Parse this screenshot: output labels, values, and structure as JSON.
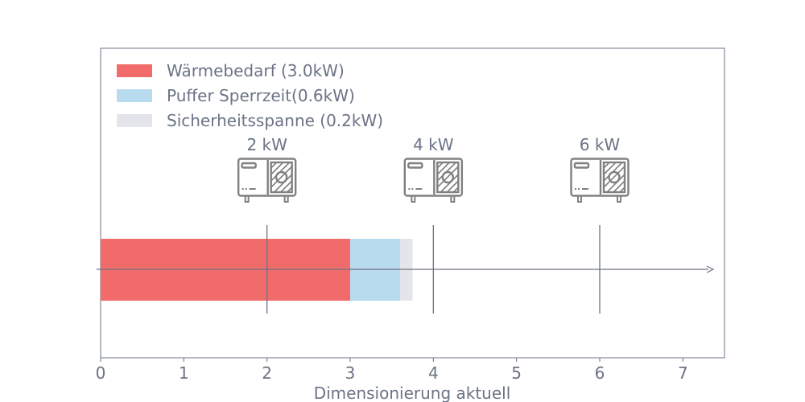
{
  "chart_data": {
    "type": "bar",
    "orientation": "horizontal",
    "stacked": true,
    "xlabel": "Dimensionierung aktuell",
    "xlim": [
      0,
      7.5
    ],
    "xticks": [
      "0",
      "1",
      "2",
      "3",
      "4",
      "5",
      "6",
      "7"
    ],
    "series": [
      {
        "name": "Wärmebedarf (3.0kW)",
        "start": 0,
        "value": 3.0,
        "color": "#f26b6b"
      },
      {
        "name": "Puffer Sperrzeit(0.6kW)",
        "start": 3.0,
        "value": 0.6,
        "color": "#b9dbee"
      },
      {
        "name": "Sicherheitsspanne (0.2kW)",
        "start": 3.6,
        "value": 0.15,
        "color": "#e3e5ea"
      }
    ],
    "legend_position": "top-left",
    "markers": [
      {
        "x": 2,
        "label": "2 kW",
        "icon": "heat-pump-icon"
      },
      {
        "x": 4,
        "label": "4 kW",
        "icon": "heat-pump-icon"
      },
      {
        "x": 6,
        "label": "6 kW",
        "icon": "heat-pump-icon"
      }
    ],
    "grid": false
  }
}
